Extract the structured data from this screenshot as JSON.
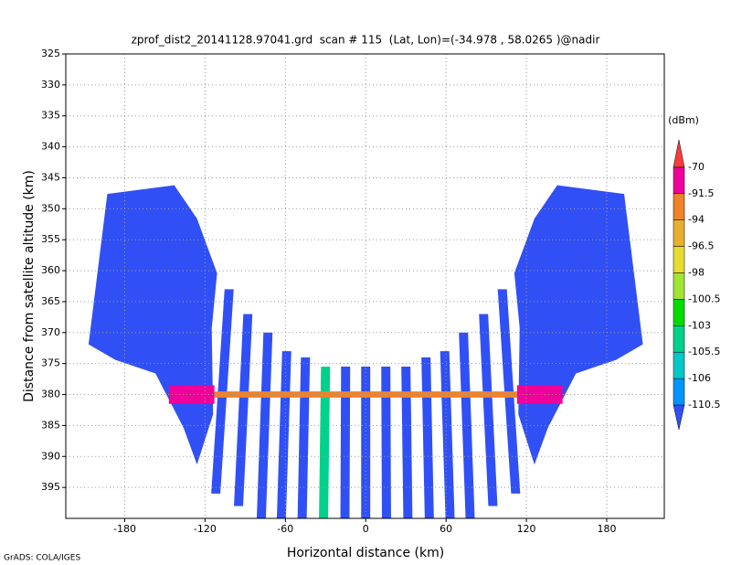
{
  "chart_data": {
    "type": "swath",
    "title": "zprof_dist2_20141128.97041.grd  scan # 115  (Lat, Lon)=(-34.978 , 58.0265 )@nadir",
    "xlabel": "Horizontal distance (km)",
    "ylabel": "Distance from satellite altitude (km)",
    "footer": "GrADS: COLA/IGES",
    "xlim": [
      -224,
      223
    ],
    "ylim": [
      325,
      400
    ],
    "xticks": [
      -180,
      -120,
      -60,
      0,
      60,
      120,
      180
    ],
    "yticks": [
      325,
      330,
      335,
      340,
      345,
      350,
      355,
      360,
      365,
      370,
      375,
      380,
      385,
      390,
      395
    ],
    "grid": true,
    "colorbar": {
      "unit": "(dBm)",
      "levels": [
        -110.5,
        -106,
        -105.5,
        -103,
        -100.5,
        -98,
        -96.5,
        -94,
        -91.5,
        -70
      ],
      "colors": [
        "#3050f5",
        "#0096ff",
        "#00c8c8",
        "#00d28c",
        "#00dc00",
        "#a0e632",
        "#e6dc32",
        "#e6af2d",
        "#f08228",
        "#f0009a",
        "#fa3c3c"
      ]
    },
    "blocks": [
      {
        "value": -111,
        "points": [
          [
            -193,
            347.6
          ],
          [
            -143,
            346.2
          ],
          [
            -126,
            351.6
          ],
          [
            -111,
            360.4
          ],
          [
            -115,
            369.3
          ],
          [
            -114,
            383.2
          ],
          [
            -126,
            391.3
          ],
          [
            -136,
            385.4
          ],
          [
            -157,
            376.6
          ],
          [
            -187,
            374.4
          ],
          [
            -207,
            371.9
          ]
        ]
      },
      {
        "value": -111,
        "points": [
          [
            193,
            347.6
          ],
          [
            143,
            346.2
          ],
          [
            126,
            351.6
          ],
          [
            111,
            360.4
          ],
          [
            115,
            369.3
          ],
          [
            114,
            383.2
          ],
          [
            126,
            391.3
          ],
          [
            136,
            385.4
          ],
          [
            157,
            376.6
          ],
          [
            187,
            374.4
          ],
          [
            207,
            371.9
          ]
        ]
      }
    ],
    "beams": [
      {
        "x_top": -102,
        "x_bottom": -112,
        "top": 363,
        "bottom": 396,
        "value": -111
      },
      {
        "x_top": -88,
        "x_bottom": -95,
        "top": 367,
        "bottom": 398,
        "value": -111
      },
      {
        "x_top": -73,
        "x_bottom": -78,
        "top": 370,
        "bottom": 400,
        "value": -111
      },
      {
        "x_top": -59,
        "x_bottom": -63,
        "top": 373,
        "bottom": 400,
        "value": -111
      },
      {
        "x_top": -45,
        "x_bottom": -47.5,
        "top": 374,
        "bottom": 400,
        "value": -111
      },
      {
        "x_top": -30,
        "x_bottom": -31.5,
        "top": 375.5,
        "bottom": 400,
        "value": -105
      },
      {
        "x_top": -15,
        "x_bottom": -15.5,
        "top": 375.5,
        "bottom": 400,
        "value": -111
      },
      {
        "x_top": 0,
        "x_bottom": 0,
        "top": 375.5,
        "bottom": 400,
        "value": -111
      },
      {
        "x_top": 15,
        "x_bottom": 15.5,
        "top": 375.5,
        "bottom": 400,
        "value": -111
      },
      {
        "x_top": 30,
        "x_bottom": 31.5,
        "top": 375.5,
        "bottom": 400,
        "value": -111
      },
      {
        "x_top": 45,
        "x_bottom": 47.5,
        "top": 374,
        "bottom": 400,
        "value": -111
      },
      {
        "x_top": 59,
        "x_bottom": 63,
        "top": 373,
        "bottom": 400,
        "value": -111
      },
      {
        "x_top": 73,
        "x_bottom": 78,
        "top": 370,
        "bottom": 400,
        "value": -111
      },
      {
        "x_top": 88,
        "x_bottom": 95,
        "top": 367,
        "bottom": 398,
        "value": -111
      },
      {
        "x_top": 102,
        "x_bottom": 112,
        "top": 363,
        "bottom": 396,
        "value": -111
      }
    ],
    "bands": [
      {
        "x0": -147,
        "x1": -113,
        "top": 378.5,
        "bottom": 381.5,
        "value": -91.5
      },
      {
        "x0": -113,
        "x1": 113,
        "top": 379.5,
        "bottom": 380.5,
        "value": -94
      },
      {
        "x0": 113,
        "x1": 147,
        "top": 378.5,
        "bottom": 381.5,
        "value": -91.5
      }
    ]
  }
}
